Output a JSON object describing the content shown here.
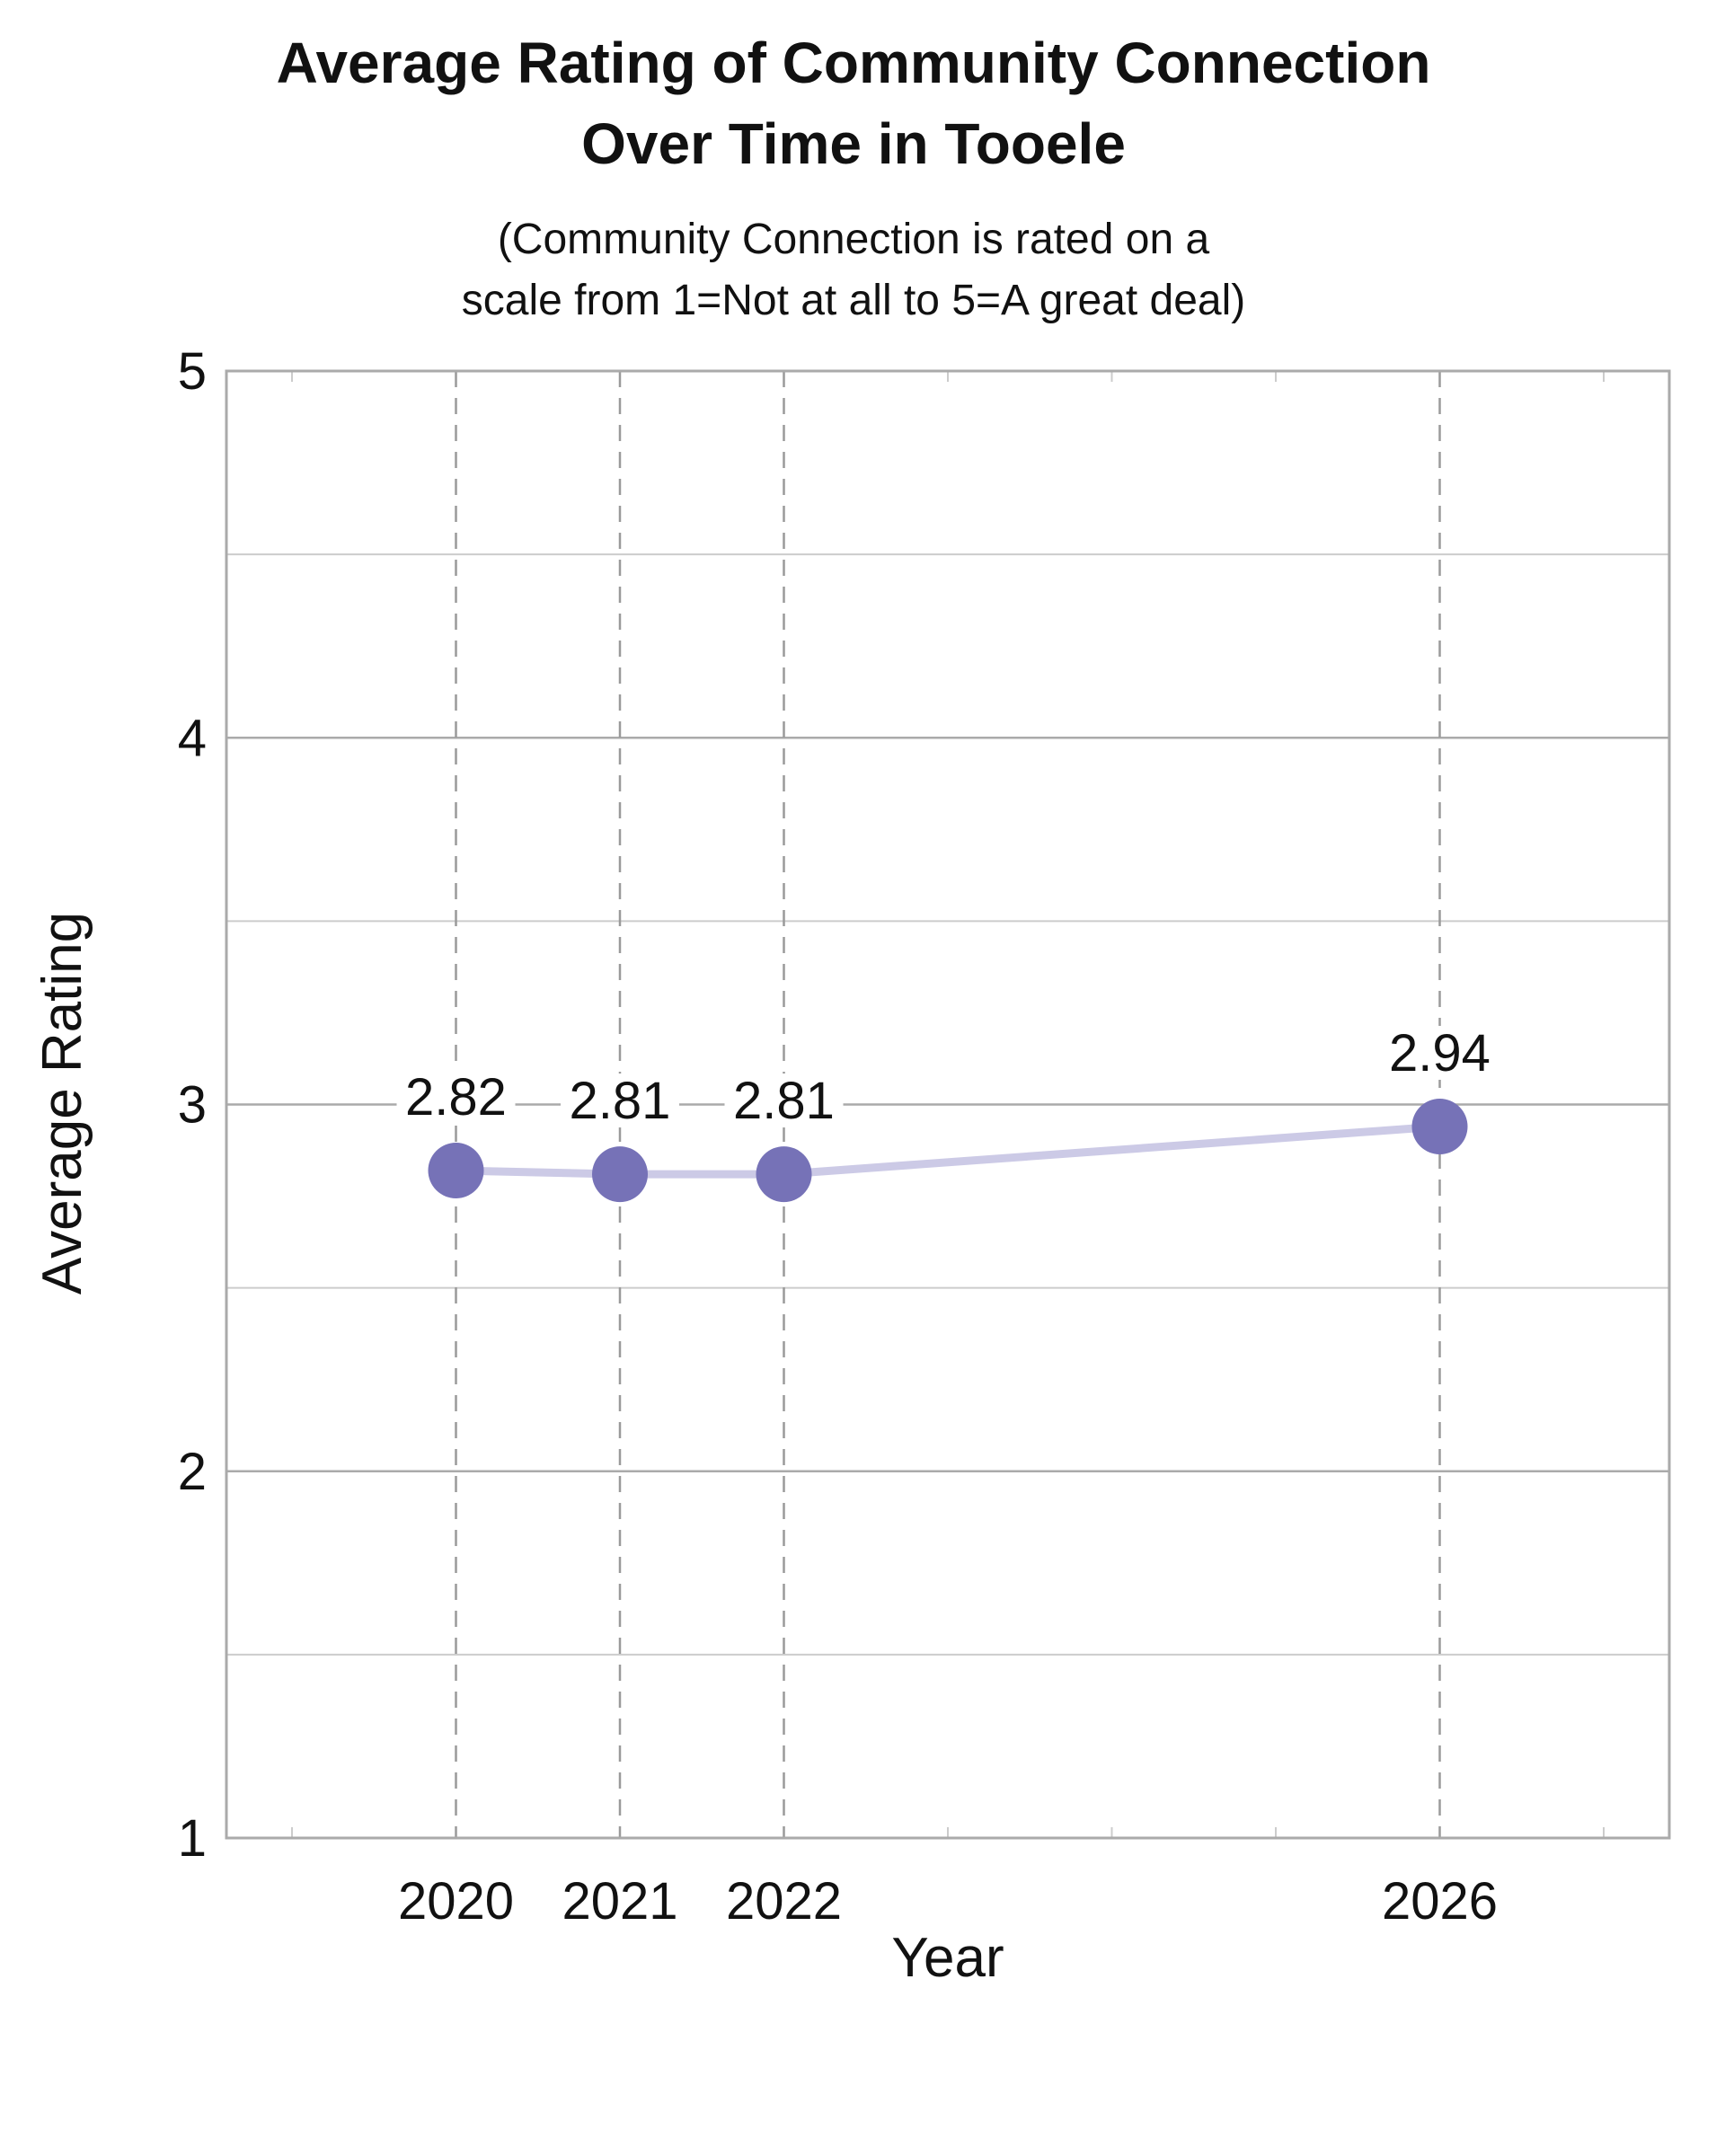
{
  "chart_data": {
    "type": "line",
    "title": "Average Rating of Community Connection Over Time in Tooele",
    "title_lines": [
      "Average Rating of Community Connection",
      "Over Time in Tooele"
    ],
    "subtitle": "(Community Connection is rated on a scale from 1=Not at all to 5=A great deal)",
    "subtitle_lines": [
      "(Community Connection is rated on a",
      "scale from 1=Not at all to 5=A great deal)"
    ],
    "xlabel": "Year",
    "ylabel": "Average Rating",
    "x": [
      2020,
      2021,
      2022,
      2026
    ],
    "series": [
      {
        "values": [
          2.82,
          2.81,
          2.81,
          2.94
        ],
        "labels": [
          "2.82",
          "2.81",
          "2.81",
          "2.94"
        ]
      }
    ],
    "xlim": [
      2018.6,
      2027.4
    ],
    "ylim": [
      1,
      5
    ],
    "x_ticks": [
      2020,
      2021,
      2022,
      2026
    ],
    "x_tick_labels": [
      "2020",
      "2021",
      "2022",
      "2026"
    ],
    "y_ticks": [
      1,
      2,
      3,
      4,
      5
    ],
    "y_tick_labels": [
      "1",
      "2",
      "3",
      "4",
      "5"
    ],
    "y_minor_ticks": [
      1.5,
      2.5,
      3.5,
      4.5
    ],
    "x_minor_ticks": [
      2019,
      2023,
      2024,
      2025,
      2027
    ],
    "grid": true,
    "colors": {
      "marker": "#7672b7",
      "line": "#cccae6",
      "frame": "#aaaaaa",
      "grid_major": "#aaaaaa",
      "grid_minor": "#cccccc",
      "vertical_grid": "#9a9a9a"
    }
  }
}
